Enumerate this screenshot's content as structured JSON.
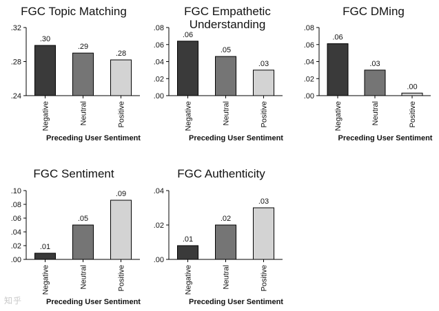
{
  "chart_data": [
    {
      "type": "bar",
      "title": "FGC Topic Matching",
      "categories": [
        "Negative",
        "Neutral",
        "Positive"
      ],
      "values": [
        0.299,
        0.29,
        0.282
      ],
      "value_labels": [
        ".30",
        ".29",
        ".28"
      ],
      "colors": [
        "#3a3a3a",
        "#757575",
        "#d3d3d3"
      ],
      "ylim": [
        0.24,
        0.32
      ],
      "yticks": [
        0.24,
        0.28,
        0.32
      ],
      "ytick_labels": [
        ".24",
        ".28",
        ".32"
      ],
      "xlabel": "Preceding User Sentiment",
      "ylabel": ""
    },
    {
      "type": "bar",
      "title": "FGC Empathetic Understanding",
      "title_lines": [
        "FGC Empathetic",
        "Understanding"
      ],
      "categories": [
        "Negative",
        "Neutral",
        "Positive"
      ],
      "values": [
        0.064,
        0.046,
        0.03
      ],
      "value_labels": [
        ".06",
        ".05",
        ".03"
      ],
      "colors": [
        "#3a3a3a",
        "#757575",
        "#d3d3d3"
      ],
      "ylim": [
        0,
        0.08
      ],
      "yticks": [
        0,
        0.02,
        0.04,
        0.06,
        0.08
      ],
      "ytick_labels": [
        ".00",
        ".02",
        ".04",
        ".06",
        ".08"
      ],
      "xlabel": "Preceding User Sentiment",
      "ylabel": ""
    },
    {
      "type": "bar",
      "title": "FGC DMing",
      "categories": [
        "Negative",
        "Neutral",
        "Positive"
      ],
      "values": [
        0.061,
        0.03,
        0.003
      ],
      "value_labels": [
        ".06",
        ".03",
        ".00"
      ],
      "colors": [
        "#3a3a3a",
        "#757575",
        "#d3d3d3"
      ],
      "ylim": [
        0,
        0.08
      ],
      "yticks": [
        0,
        0.02,
        0.04,
        0.06,
        0.08
      ],
      "ytick_labels": [
        ".00",
        ".02",
        ".04",
        ".06",
        ".08"
      ],
      "xlabel": "Preceding User Sentiment",
      "ylabel": ""
    },
    {
      "type": "bar",
      "title": "FGC Sentiment",
      "categories": [
        "Negative",
        "Neutral",
        "Positive"
      ],
      "values": [
        0.009,
        0.05,
        0.086
      ],
      "value_labels": [
        ".01",
        ".05",
        ".09"
      ],
      "colors": [
        "#3a3a3a",
        "#757575",
        "#d3d3d3"
      ],
      "ylim": [
        0,
        0.1
      ],
      "yticks": [
        0,
        0.02,
        0.04,
        0.06,
        0.08,
        0.1
      ],
      "ytick_labels": [
        ".00",
        ".02",
        ".04",
        ".06",
        ".08",
        ".10"
      ],
      "xlabel": "Preceding User Sentiment",
      "ylabel": ""
    },
    {
      "type": "bar",
      "title": "FGC Authenticity",
      "categories": [
        "Negative",
        "Neutral",
        "Positive"
      ],
      "values": [
        0.008,
        0.02,
        0.03
      ],
      "value_labels": [
        ".01",
        ".02",
        ".03"
      ],
      "colors": [
        "#3a3a3a",
        "#757575",
        "#d3d3d3"
      ],
      "ylim": [
        0,
        0.04
      ],
      "yticks": [
        0,
        0.02,
        0.04
      ],
      "ytick_labels": [
        ".00",
        ".02",
        ".04"
      ],
      "xlabel": "Preceding User Sentiment",
      "ylabel": ""
    }
  ],
  "watermark": "知乎"
}
